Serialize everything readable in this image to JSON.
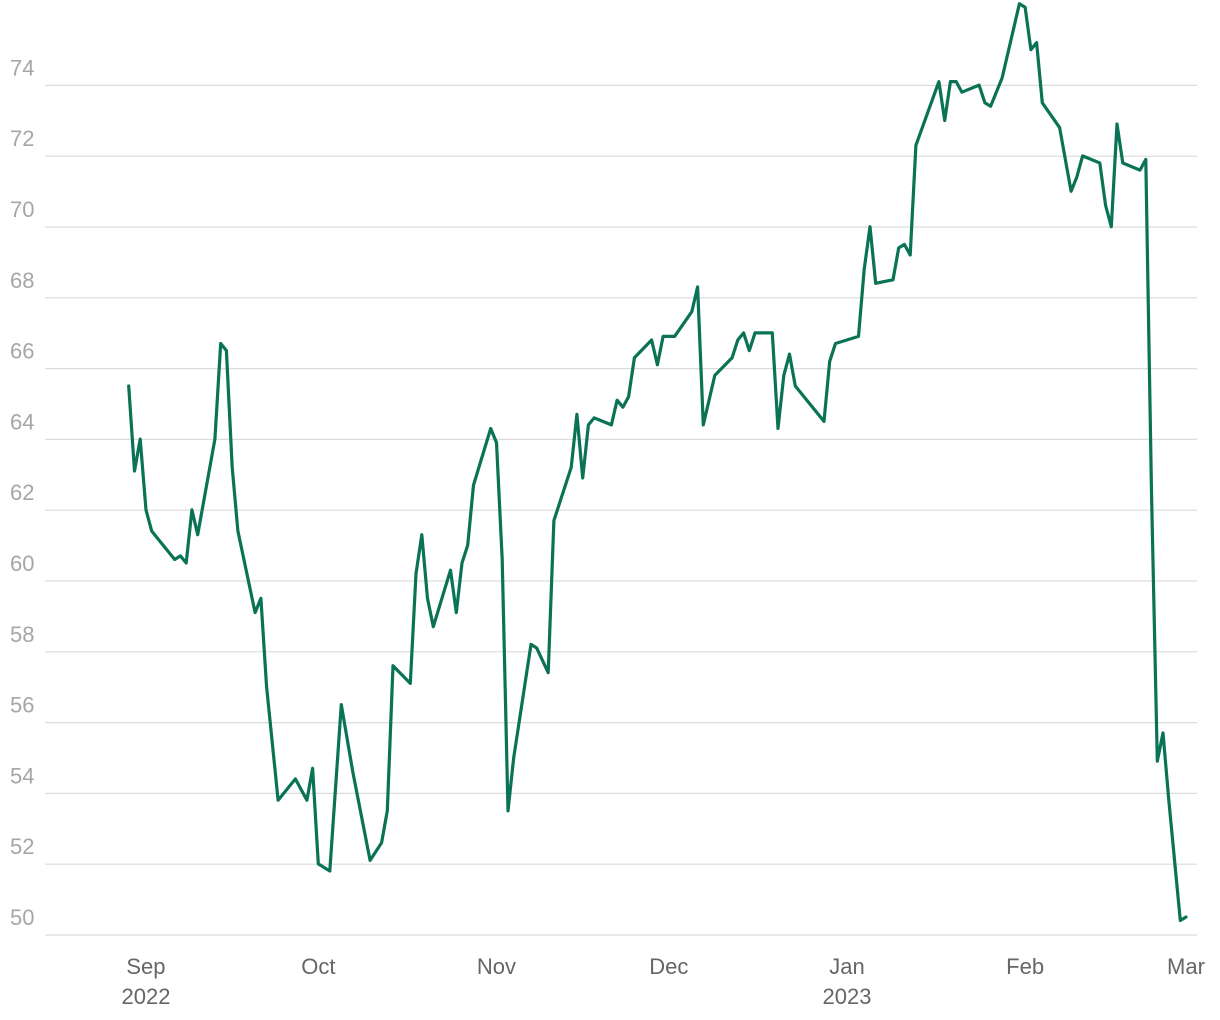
{
  "chart_data": {
    "type": "line",
    "title": "",
    "xlabel": "",
    "ylabel": "",
    "ylim": [
      49.5,
      76
    ],
    "xlim": [
      "2022-08-24",
      "2023-03-01"
    ],
    "y_ticks": [
      50,
      52,
      54,
      56,
      58,
      60,
      62,
      64,
      66,
      68,
      70,
      72,
      74
    ],
    "x_ticks": [
      {
        "date": "2022-09-01",
        "label": "Sep",
        "sublabel": "2022"
      },
      {
        "date": "2022-10-01",
        "label": "Oct",
        "sublabel": ""
      },
      {
        "date": "2022-11-01",
        "label": "Nov",
        "sublabel": ""
      },
      {
        "date": "2022-12-01",
        "label": "Dec",
        "sublabel": ""
      },
      {
        "date": "2023-01-01",
        "label": "Jan",
        "sublabel": "2023"
      },
      {
        "date": "2023-02-01",
        "label": "Feb",
        "sublabel": ""
      },
      {
        "date": "2023-03-01",
        "label": "Mar",
        "sublabel": ""
      }
    ],
    "grid": "horizontal",
    "legend": "none",
    "series": [
      {
        "color": "#0a7355",
        "points": [
          [
            "2022-08-29",
            65.0
          ],
          [
            "2022-08-30",
            62.6
          ],
          [
            "2022-08-31",
            63.5
          ],
          [
            "2022-09-01",
            61.5
          ],
          [
            "2022-09-02",
            60.9
          ],
          [
            "2022-09-06",
            60.1
          ],
          [
            "2022-09-07",
            60.2
          ],
          [
            "2022-09-08",
            60.0
          ],
          [
            "2022-09-09",
            61.5
          ],
          [
            "2022-09-10",
            60.8
          ],
          [
            "2022-09-13",
            63.5
          ],
          [
            "2022-09-14",
            66.2
          ],
          [
            "2022-09-15",
            66.0
          ],
          [
            "2022-09-16",
            62.7
          ],
          [
            "2022-09-17",
            60.9
          ],
          [
            "2022-09-20",
            58.6
          ],
          [
            "2022-09-21",
            59.0
          ],
          [
            "2022-09-22",
            56.5
          ],
          [
            "2022-09-24",
            53.3
          ],
          [
            "2022-09-27",
            53.9
          ],
          [
            "2022-09-29",
            53.3
          ],
          [
            "2022-09-30",
            54.2
          ],
          [
            "2022-10-01",
            51.5
          ],
          [
            "2022-10-03",
            51.3
          ],
          [
            "2022-10-05",
            56.0
          ],
          [
            "2022-10-07",
            54.1
          ],
          [
            "2022-10-10",
            51.6
          ],
          [
            "2022-10-12",
            52.1
          ],
          [
            "2022-10-13",
            53.0
          ],
          [
            "2022-10-14",
            57.1
          ],
          [
            "2022-10-17",
            56.6
          ],
          [
            "2022-10-18",
            59.7
          ],
          [
            "2022-10-19",
            60.8
          ],
          [
            "2022-10-20",
            59.0
          ],
          [
            "2022-10-21",
            58.2
          ],
          [
            "2022-10-24",
            59.8
          ],
          [
            "2022-10-25",
            58.6
          ],
          [
            "2022-10-26",
            60.0
          ],
          [
            "2022-10-27",
            60.5
          ],
          [
            "2022-10-28",
            62.2
          ],
          [
            "2022-10-31",
            63.8
          ],
          [
            "2022-11-01",
            63.4
          ],
          [
            "2022-11-02",
            60.1
          ],
          [
            "2022-11-03",
            53.0
          ],
          [
            "2022-11-04",
            54.5
          ],
          [
            "2022-11-07",
            57.7
          ],
          [
            "2022-11-08",
            57.6
          ],
          [
            "2022-11-10",
            56.9
          ],
          [
            "2022-11-11",
            61.2
          ],
          [
            "2022-11-14",
            62.7
          ],
          [
            "2022-11-15",
            64.2
          ],
          [
            "2022-11-16",
            62.4
          ],
          [
            "2022-11-17",
            63.9
          ],
          [
            "2022-11-18",
            64.1
          ],
          [
            "2022-11-21",
            63.9
          ],
          [
            "2022-11-22",
            64.6
          ],
          [
            "2022-11-23",
            64.4
          ],
          [
            "2022-11-24",
            64.7
          ],
          [
            "2022-11-25",
            65.8
          ],
          [
            "2022-11-28",
            66.3
          ],
          [
            "2022-11-29",
            65.6
          ],
          [
            "2022-11-30",
            66.4
          ],
          [
            "2022-12-02",
            66.4
          ],
          [
            "2022-12-05",
            67.1
          ],
          [
            "2022-12-06",
            67.8
          ],
          [
            "2022-12-07",
            63.9
          ],
          [
            "2022-12-09",
            65.3
          ],
          [
            "2022-12-12",
            65.8
          ],
          [
            "2022-12-13",
            66.3
          ],
          [
            "2022-12-14",
            66.5
          ],
          [
            "2022-12-15",
            66.0
          ],
          [
            "2022-12-16",
            66.5
          ],
          [
            "2022-12-19",
            66.5
          ],
          [
            "2022-12-20",
            63.8
          ],
          [
            "2022-12-21",
            65.3
          ],
          [
            "2022-12-22",
            65.9
          ],
          [
            "2022-12-23",
            65.0
          ],
          [
            "2022-12-28",
            64.0
          ],
          [
            "2022-12-29",
            65.7
          ],
          [
            "2022-12-30",
            66.2
          ],
          [
            "2023-01-03",
            66.4
          ],
          [
            "2023-01-04",
            68.3
          ],
          [
            "2023-01-05",
            69.5
          ],
          [
            "2023-01-06",
            67.9
          ],
          [
            "2023-01-09",
            68.0
          ],
          [
            "2023-01-10",
            68.9
          ],
          [
            "2023-01-11",
            69.0
          ],
          [
            "2023-01-12",
            68.7
          ],
          [
            "2023-01-13",
            71.8
          ],
          [
            "2023-01-17",
            73.6
          ],
          [
            "2023-01-18",
            72.5
          ],
          [
            "2023-01-19",
            73.6
          ],
          [
            "2023-01-20",
            73.6
          ],
          [
            "2023-01-21",
            73.3
          ],
          [
            "2023-01-24",
            73.5
          ],
          [
            "2023-01-25",
            73.0
          ],
          [
            "2023-01-26",
            72.9
          ],
          [
            "2023-01-28",
            73.7
          ],
          [
            "2023-01-31",
            75.8
          ],
          [
            "2023-02-01",
            75.7
          ],
          [
            "2023-02-02",
            74.5
          ],
          [
            "2023-02-03",
            74.7
          ],
          [
            "2023-02-04",
            73.0
          ],
          [
            "2023-02-07",
            72.3
          ],
          [
            "2023-02-09",
            70.5
          ],
          [
            "2023-02-10",
            70.9
          ],
          [
            "2023-02-11",
            71.5
          ],
          [
            "2023-02-14",
            71.3
          ],
          [
            "2023-02-15",
            70.1
          ],
          [
            "2023-02-16",
            69.5
          ],
          [
            "2023-02-17",
            72.4
          ],
          [
            "2023-02-18",
            71.3
          ],
          [
            "2023-02-21",
            71.1
          ],
          [
            "2023-02-22",
            71.4
          ],
          [
            "2023-02-23",
            62.0
          ],
          [
            "2023-02-24",
            54.4
          ],
          [
            "2023-02-25",
            55.2
          ],
          [
            "2023-02-26",
            53.3
          ],
          [
            "2023-02-28",
            49.9
          ],
          [
            "2023-03-01",
            50.0
          ]
        ]
      }
    ]
  }
}
